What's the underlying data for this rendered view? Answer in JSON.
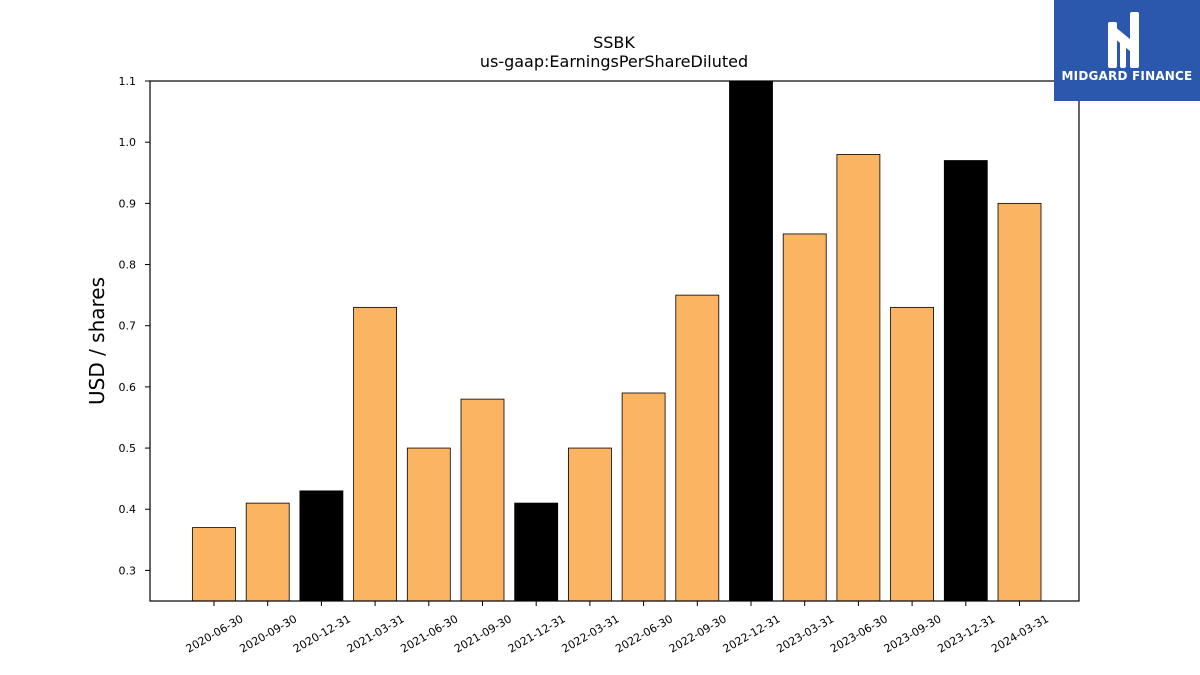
{
  "chart_data": {
    "type": "bar",
    "title": "SSBK",
    "subtitle": "us-gaap:EarningsPerShareDiluted",
    "xlabel": "",
    "ylabel": "USD / shares",
    "ylim": [
      0.25,
      1.1
    ],
    "yticks": [
      "0.3",
      "0.4",
      "0.5",
      "0.6",
      "0.7",
      "0.8",
      "0.9",
      "1.0",
      "1.1"
    ],
    "grid": false,
    "categories": [
      "2020-06-30",
      "2020-09-30",
      "2020-12-31",
      "2021-03-31",
      "2021-06-30",
      "2021-09-30",
      "2021-12-31",
      "2022-03-31",
      "2022-06-30",
      "2022-09-30",
      "2022-12-31",
      "2023-03-31",
      "2023-06-30",
      "2023-09-30",
      "2023-12-31",
      "2024-03-31"
    ],
    "values": [
      0.37,
      0.41,
      0.43,
      0.73,
      0.5,
      0.58,
      0.41,
      0.5,
      0.59,
      0.75,
      1.1,
      0.85,
      0.98,
      0.73,
      0.97,
      0.9
    ],
    "bar_colors": [
      "#fbb462",
      "#fbb462",
      "#000000",
      "#fbb462",
      "#fbb462",
      "#fbb462",
      "#000000",
      "#fbb462",
      "#fbb462",
      "#fbb462",
      "#000000",
      "#fbb462",
      "#fbb462",
      "#fbb462",
      "#000000",
      "#fbb462"
    ]
  },
  "logo": {
    "text": "MIDGARD FINANCE",
    "background": "#2b57ad"
  }
}
